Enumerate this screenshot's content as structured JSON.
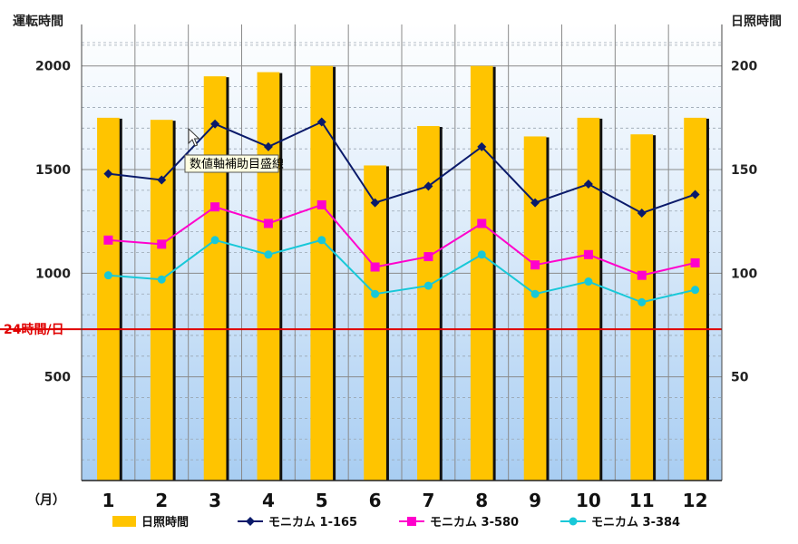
{
  "chart_data": {
    "type": "bar",
    "categories": [
      "1",
      "2",
      "3",
      "4",
      "5",
      "6",
      "7",
      "8",
      "9",
      "10",
      "11",
      "12"
    ],
    "x_unit_label": "（月）",
    "y_left_title": "運転時間",
    "y_right_title": "日照時間",
    "y_left_ticks": [
      500,
      1000,
      1500,
      2000
    ],
    "y_right_ticks": [
      50,
      100,
      150,
      200
    ],
    "y_left_range": [
      0,
      2200
    ],
    "y_right_range": [
      0,
      220
    ],
    "bar_series": {
      "name": "日照時間",
      "axis": "right",
      "color": "#ffc400",
      "values": [
        175,
        174,
        195,
        197,
        200,
        152,
        171,
        200,
        166,
        175,
        167,
        175
      ]
    },
    "line_series": [
      {
        "name": "モニカム 1-165",
        "axis": "left",
        "color": "#0a1a6a",
        "marker": "diamond",
        "values": [
          1480,
          1450,
          1720,
          1610,
          1730,
          1340,
          1420,
          1610,
          1340,
          1430,
          1290,
          1380
        ]
      },
      {
        "name": "モニカム 3-580",
        "axis": "left",
        "color": "#ff00cc",
        "marker": "square",
        "values": [
          1160,
          1140,
          1320,
          1240,
          1330,
          1030,
          1080,
          1240,
          1040,
          1090,
          990,
          1050
        ]
      },
      {
        "name": "モニカム 3-384",
        "axis": "left",
        "color": "#18c8d8",
        "marker": "circle",
        "values": [
          990,
          970,
          1160,
          1090,
          1160,
          900,
          940,
          1090,
          900,
          960,
          860,
          920
        ]
      }
    ],
    "reference_line": {
      "label": "24時間/日",
      "value": 730,
      "axis": "left",
      "color": "#e00000"
    },
    "grid": true,
    "legend_position": "bottom",
    "tooltip": "数値軸補助目盛線"
  }
}
